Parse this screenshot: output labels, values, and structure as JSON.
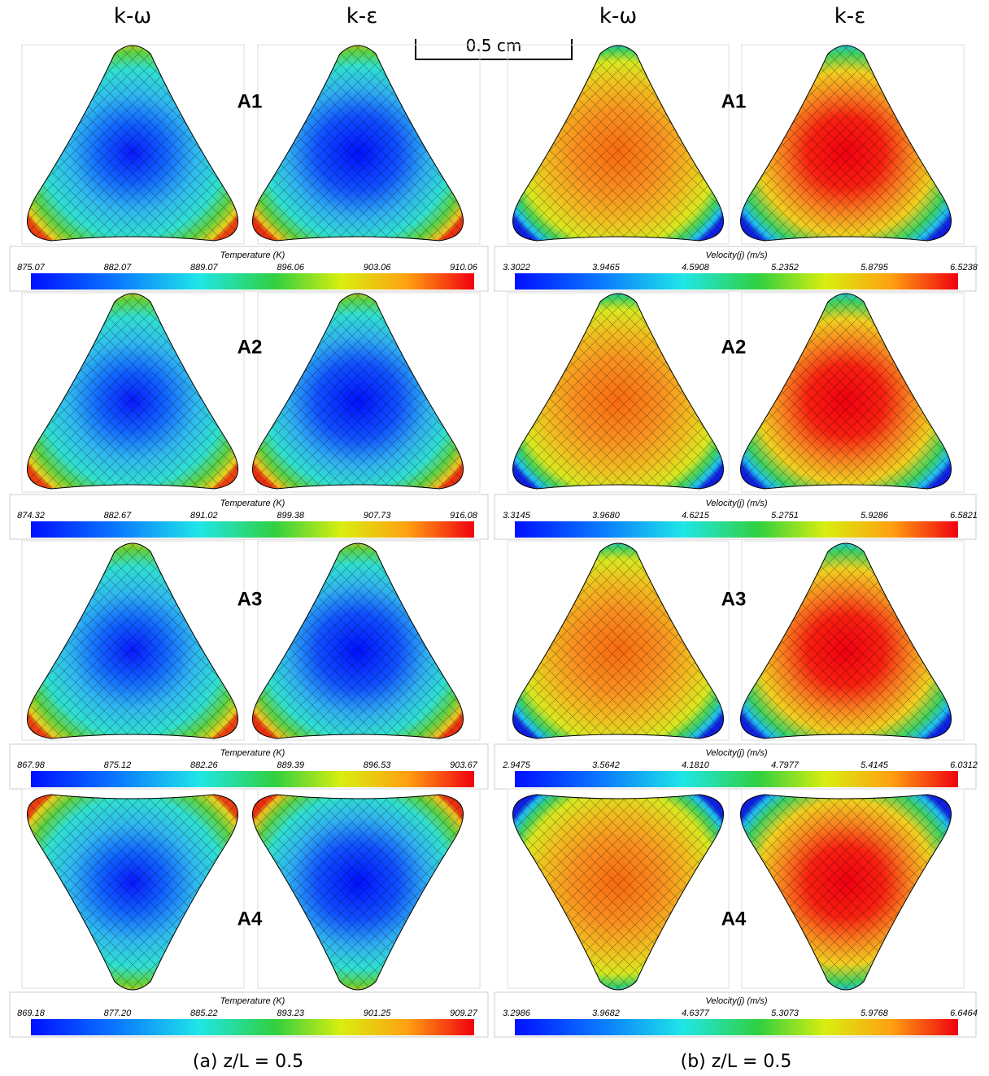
{
  "columns": [
    "k-ω",
    "k-ε",
    "k-ω",
    "k-ε"
  ],
  "scale_bar": "0.5 cm",
  "rows": [
    {
      "label": "A1",
      "temperature": {
        "title": "Temperature (K)",
        "ticks": [
          "875.07",
          "882.07",
          "889.07",
          "896.06",
          "903.06",
          "910.06"
        ]
      },
      "velocity": {
        "title": "Velocity(j) (m/s)",
        "ticks": [
          "3.3022",
          "3.9465",
          "4.5908",
          "5.2352",
          "5.8795",
          "6.5238"
        ]
      }
    },
    {
      "label": "A2",
      "temperature": {
        "title": "Temperature (K)",
        "ticks": [
          "874.32",
          "882.67",
          "891.02",
          "899.38",
          "907.73",
          "916.08"
        ]
      },
      "velocity": {
        "title": "Velocity(j) (m/s)",
        "ticks": [
          "3.3145",
          "3.9680",
          "4.6215",
          "5.2751",
          "5.9286",
          "6.5821"
        ]
      }
    },
    {
      "label": "A3",
      "temperature": {
        "title": "Temperature (K)",
        "ticks": [
          "867.98",
          "875.12",
          "882.26",
          "889.39",
          "896.53",
          "903.67"
        ]
      },
      "velocity": {
        "title": "Velocity(j) (m/s)",
        "ticks": [
          "2.9475",
          "3.5642",
          "4.1810",
          "4.7977",
          "5.4145",
          "6.0312"
        ]
      }
    },
    {
      "label": "A4",
      "temperature": {
        "title": "Temperature (K)",
        "ticks": [
          "869.18",
          "877.20",
          "885.22",
          "893.23",
          "901.25",
          "909.27"
        ]
      },
      "velocity": {
        "title": "Velocity(j) (m/s)",
        "ticks": [
          "3.2986",
          "3.9682",
          "4.6377",
          "5.3073",
          "5.9768",
          "6.6464"
        ]
      }
    }
  ],
  "captions": [
    "(a) z/L = 0.5",
    "(b) z/L = 0.5"
  ]
}
